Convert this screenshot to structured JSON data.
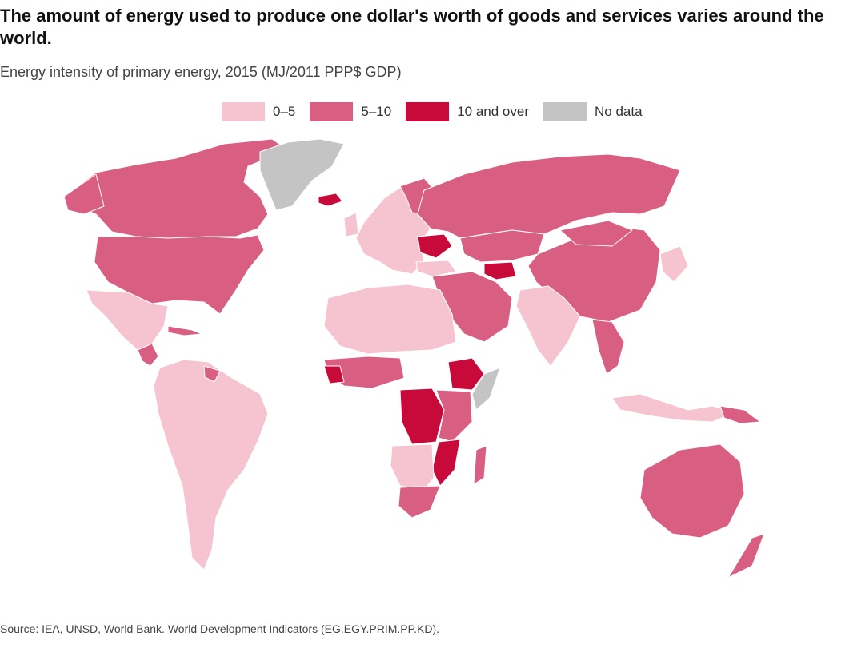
{
  "title": "The amount of energy used to produce one dollar's worth of goods and services varies around the world.",
  "subtitle": "Energy intensity of primary energy, 2015 (MJ/2011 PPP$ GDP)",
  "legend": [
    {
      "label": "0–5",
      "color": "#f5c4d0"
    },
    {
      "label": "5–10",
      "color": "#d95f82"
    },
    {
      "label": "10 and over",
      "color": "#c70a3a"
    },
    {
      "label": "No data",
      "color": "#c4c4c4"
    }
  ],
  "source": "Source: IEA, UNSD, World Bank. World Development Indicators (EG.EGY.PRIM.PP.KD)."
}
